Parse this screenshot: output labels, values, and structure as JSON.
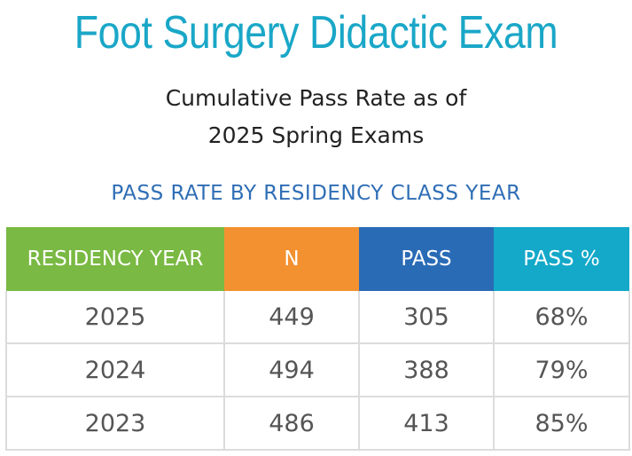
{
  "title": "Foot Surgery Didactic Exam",
  "subtitle": {
    "line1": "Cumulative Pass Rate as of",
    "line2": "2025 Spring Exams"
  },
  "section_title": "PASS RATE BY RESIDENCY CLASS YEAR",
  "table": {
    "headers": {
      "year": "RESIDENCY YEAR",
      "n": "N",
      "pass": "PASS",
      "pass_pct": "PASS %"
    },
    "header_colors": [
      "#7ab943",
      "#f39130",
      "#2a6bb6",
      "#14a8c9"
    ],
    "rows": [
      {
        "year": "2025",
        "n": "449",
        "pass": "305",
        "pass_pct": "68%"
      },
      {
        "year": "2024",
        "n": "494",
        "pass": "388",
        "pass_pct": "79%"
      },
      {
        "year": "2023",
        "n": "486",
        "pass": "413",
        "pass_pct": "85%"
      }
    ]
  }
}
